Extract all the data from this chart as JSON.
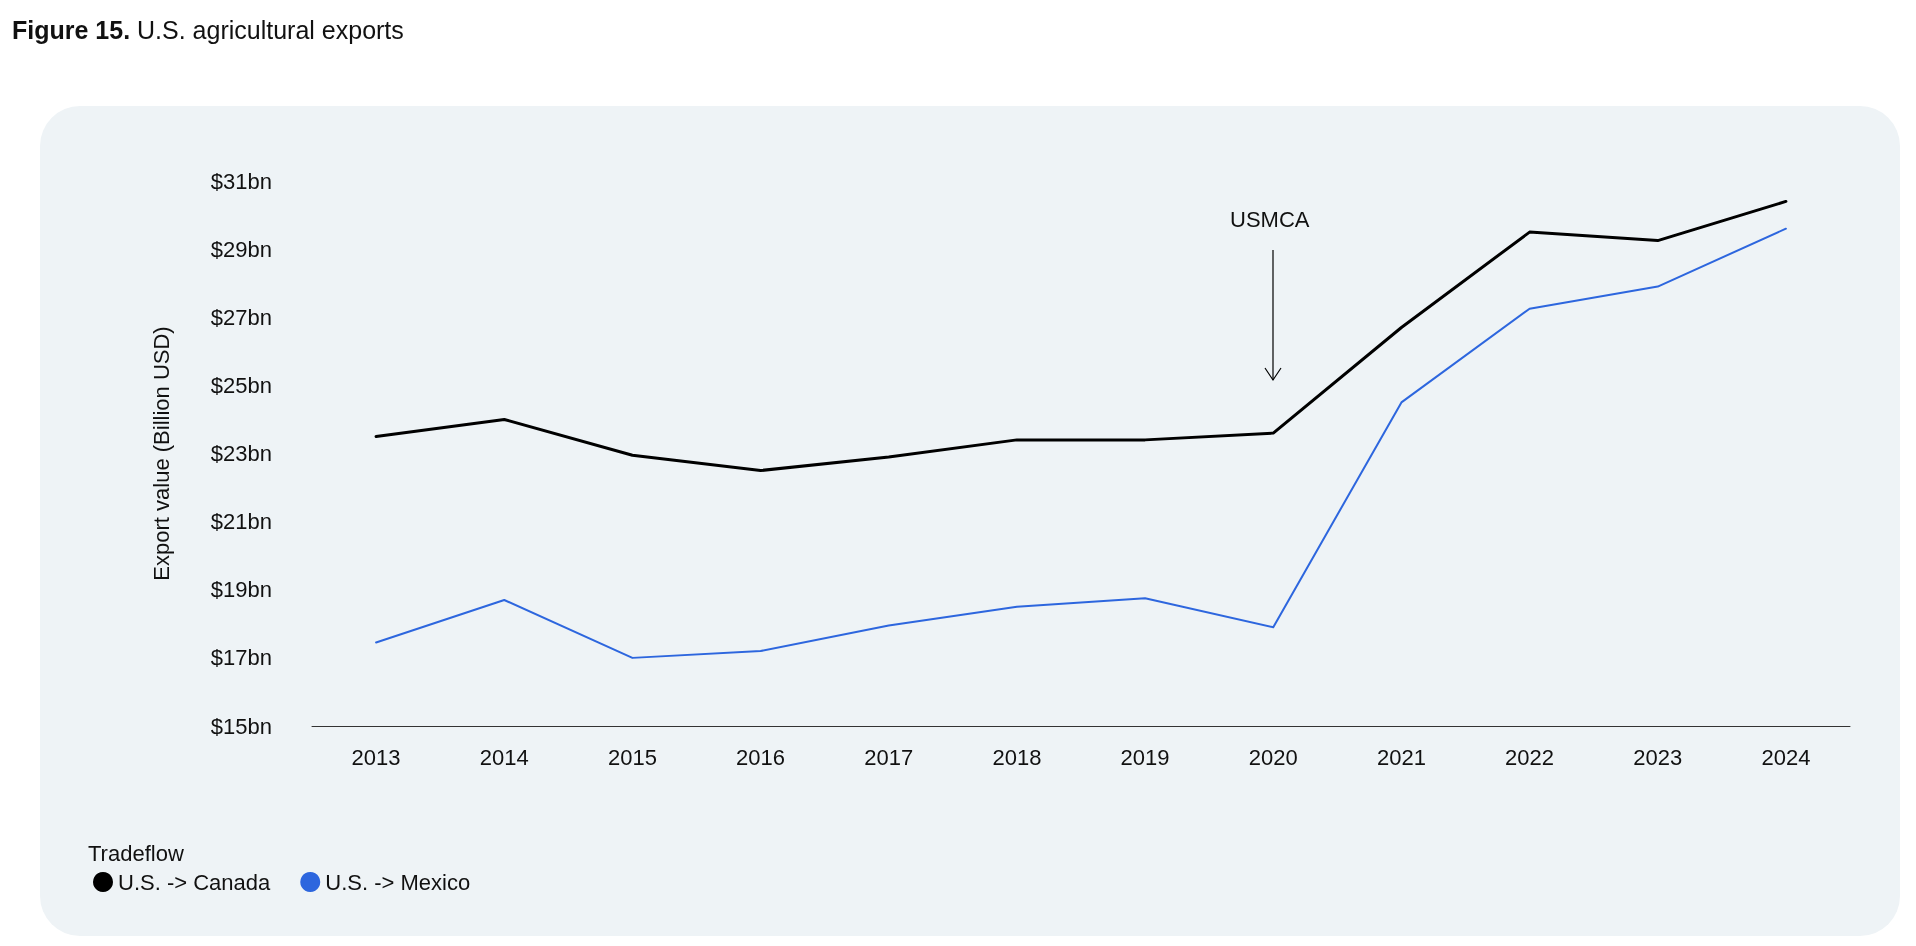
{
  "chart_data": {
    "type": "line",
    "title": "Figure 15. U.S. agricultural exports",
    "ylabel": "Export value (Billion USD)",
    "legend_title": "Tradeflow",
    "legend": "bottom left",
    "grid": false,
    "marker": "none",
    "categories": [
      "2013",
      "2014",
      "2015",
      "2016",
      "2017",
      "2018",
      "2019",
      "2020",
      "2021",
      "2022",
      "2023",
      "2024"
    ],
    "series": [
      {
        "name": "U.S. -> Canada",
        "color": "#000000",
        "values": [
          23.5,
          24.0,
          22.95,
          22.5,
          22.9,
          23.4,
          23.4,
          23.6,
          26.7,
          29.5,
          29.25,
          30.4
        ]
      },
      {
        "name": "U.S. -> Mexico",
        "color": "#2d66de",
        "values": [
          17.45,
          18.7,
          17.0,
          17.2,
          17.95,
          18.5,
          18.75,
          17.9,
          24.5,
          27.25,
          27.9,
          29.6
        ]
      }
    ],
    "ylim": [
      15,
      31
    ],
    "yticks": [
      {
        "value": 15,
        "label": "$15bn"
      },
      {
        "value": 17,
        "label": "$17bn"
      },
      {
        "value": 19,
        "label": "$19bn"
      },
      {
        "value": 21,
        "label": "$21bn"
      },
      {
        "value": 23,
        "label": "$23bn"
      },
      {
        "value": 25,
        "label": "$25bn"
      },
      {
        "value": 27,
        "label": "$27bn"
      },
      {
        "value": 29,
        "label": "$29bn"
      },
      {
        "value": 31,
        "label": "$31bn"
      }
    ],
    "annotations": [
      "USMCA"
    ]
  }
}
